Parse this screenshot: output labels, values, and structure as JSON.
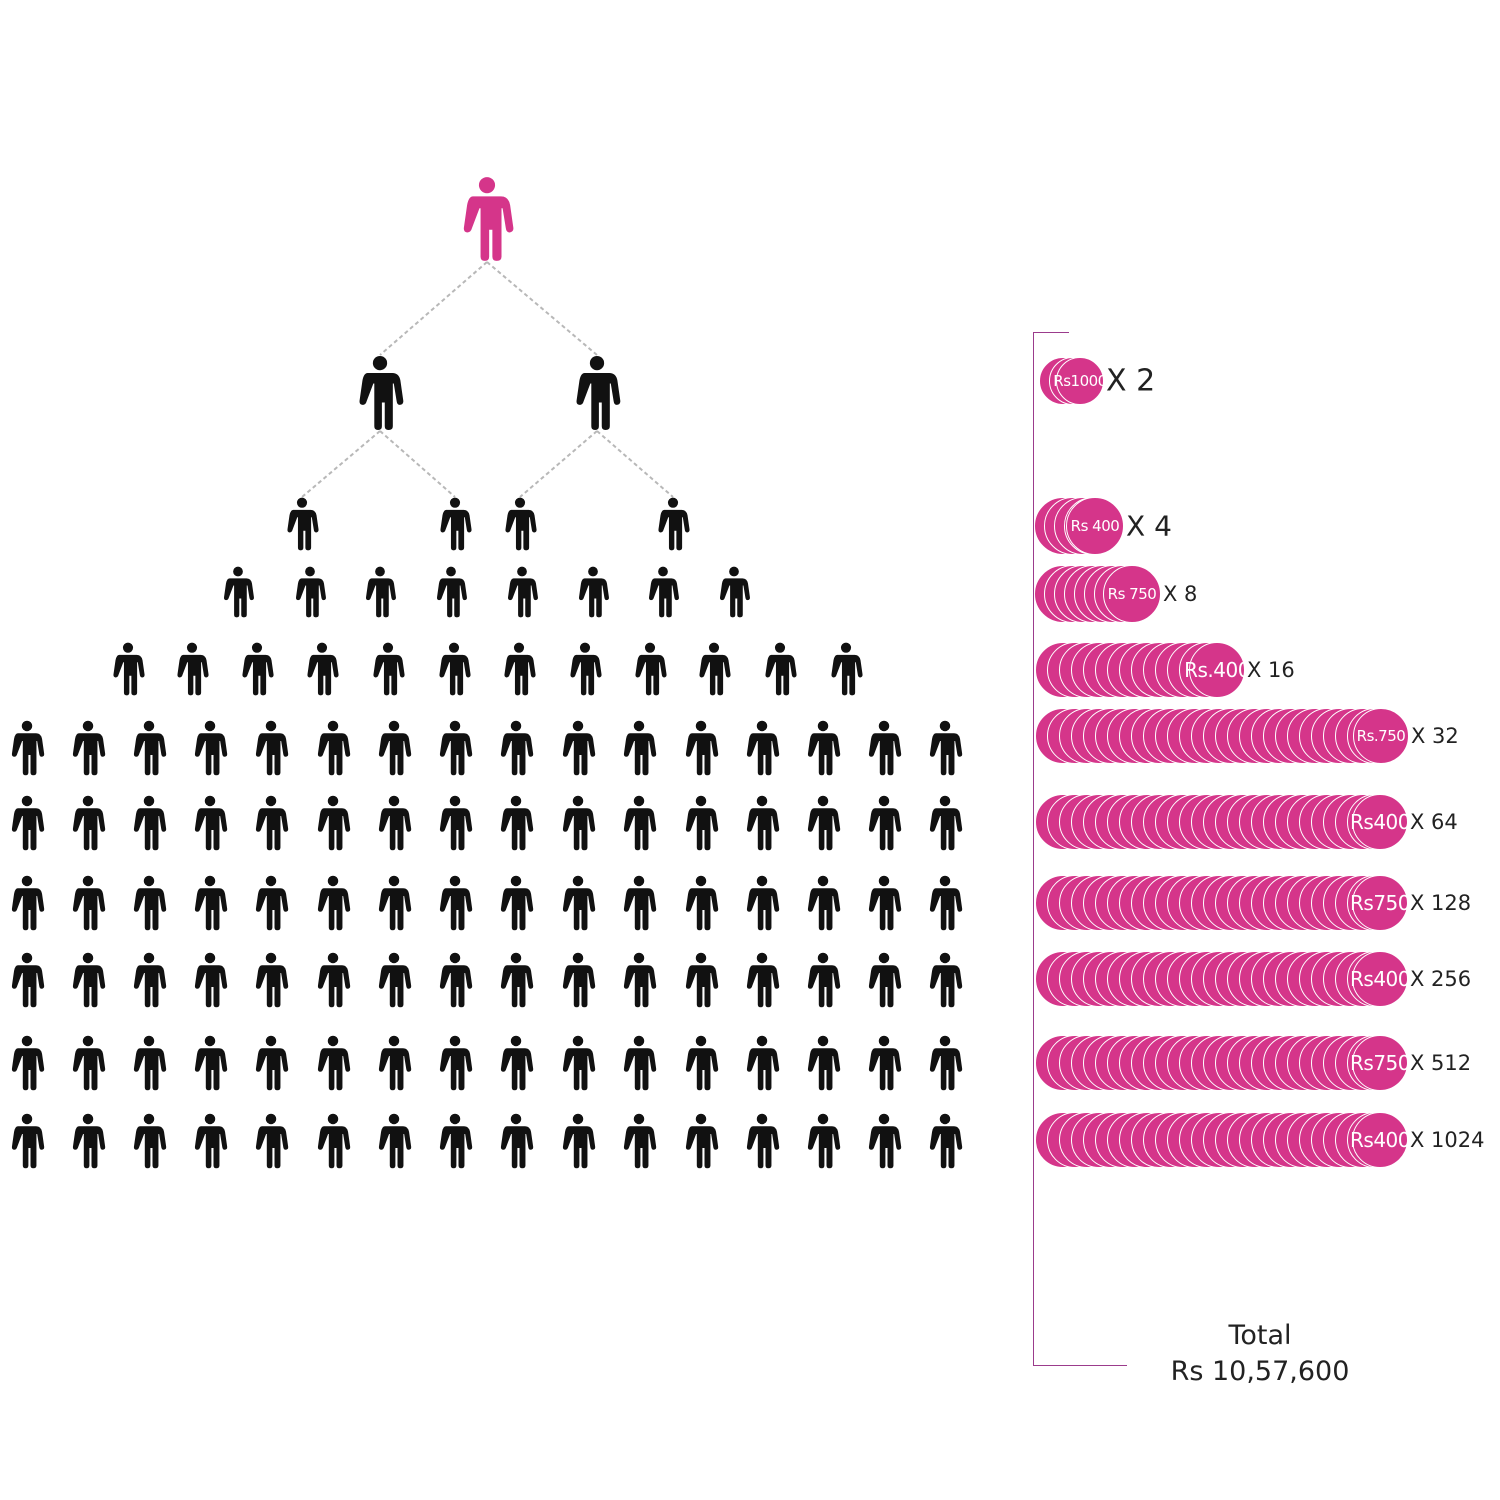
{
  "colors": {
    "accent": "#d5358a",
    "figure": "#111111",
    "connector": "#b8b8b8",
    "bracket": "#9b3b8c",
    "text": "#222222"
  },
  "icons": {
    "person": "person-icon",
    "coin": "coin-icon"
  },
  "tree": {
    "root_count": 1,
    "level_counts": [
      2,
      4,
      8,
      12,
      16,
      16,
      16,
      16,
      16,
      16
    ]
  },
  "payouts": [
    {
      "label": "Rs1000",
      "multiplier": "X 2",
      "count": 2
    },
    {
      "label": "Rs 400",
      "multiplier": "X 4",
      "count": 4
    },
    {
      "label": "Rs 750",
      "multiplier": "X 8",
      "count": 8
    },
    {
      "label": "Rs.400",
      "multiplier": "X 16",
      "count": 16
    },
    {
      "label": "Rs.750",
      "multiplier": "X 32",
      "count": 32
    },
    {
      "label": "Rs400",
      "multiplier": "X 64",
      "count": 64
    },
    {
      "label": "Rs750",
      "multiplier": "X 128",
      "count": 128
    },
    {
      "label": "Rs400",
      "multiplier": "X 256",
      "count": 256
    },
    {
      "label": "Rs750",
      "multiplier": "X 512",
      "count": 512
    },
    {
      "label": "Rs400",
      "multiplier": "X 1024",
      "count": 1024
    }
  ],
  "total": {
    "label": "Total",
    "value": "Rs 10,57,600"
  }
}
